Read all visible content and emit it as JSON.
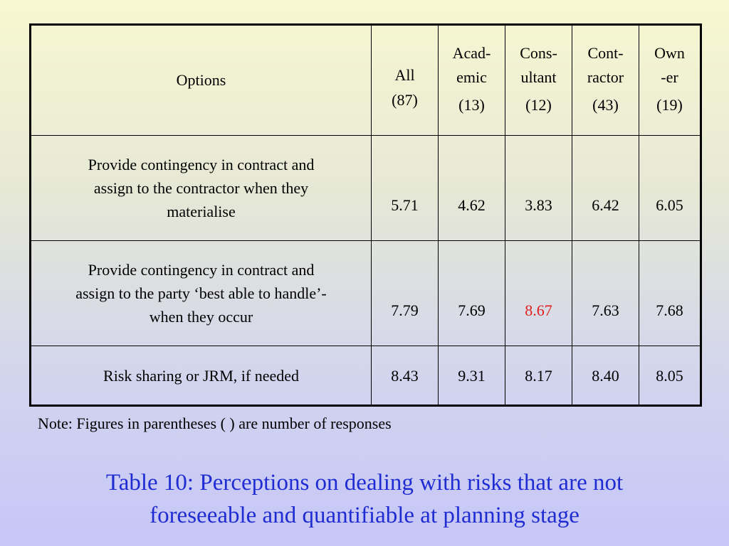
{
  "table": {
    "header": {
      "options": "Options",
      "columns": [
        {
          "label_1": "All",
          "label_2": "",
          "count": "(87)"
        },
        {
          "label_1": "Acad-",
          "label_2": "emic",
          "count": "(13)"
        },
        {
          "label_1": "Cons-",
          "label_2": "ultant",
          "count": "(12)"
        },
        {
          "label_1": "Cont-",
          "label_2": "ractor",
          "count": "(43)"
        },
        {
          "label_1": "Own",
          "label_2": "-er",
          "count": "(19)"
        }
      ]
    },
    "rows": [
      {
        "option_lines": [
          "Provide contingency in contract and",
          "assign to the contractor when they",
          "materialise"
        ],
        "values": [
          "5.71",
          "4.62",
          "3.83",
          "6.42",
          "6.05"
        ]
      },
      {
        "option_lines": [
          "Provide contingency in contract and",
          "assign to the party ‘best able to handle’-",
          "when they occur"
        ],
        "values": [
          "7.79",
          "7.69",
          "8.67",
          "7.63",
          "7.68"
        ]
      },
      {
        "option_lines": [
          "Risk sharing or JRM, if needed"
        ],
        "values": [
          "8.43",
          "9.31",
          "8.17",
          "8.40",
          "8.05"
        ]
      }
    ]
  },
  "highlight_color": "#e02020",
  "caption_color": "#1f2cd2",
  "note": "Note: Figures in parentheses ( ) are number of responses",
  "caption": {
    "line_1": "Table 10: Perceptions on dealing with risks that are not",
    "line_2": "foreseeable and quantifiable at planning stage"
  }
}
